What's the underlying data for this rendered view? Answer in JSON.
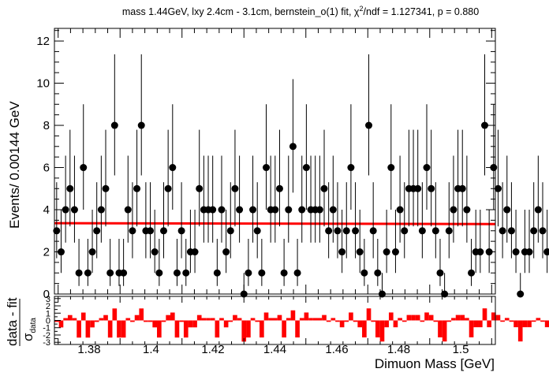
{
  "chart_data": [
    {
      "type": "scatter",
      "title_main": "mass 1.44GeV, lxy 2.4cm - 3.1cm, bernstein_o(1) fit, χ",
      "title_sup": "2",
      "title_rest": "/ndf = 1.127341, p = 0.880",
      "ylabel": "Events/ 0.00144 GeV",
      "xlim": [
        1.3688,
        1.5112
      ],
      "ylim": [
        0,
        12.6
      ],
      "xticks": [
        "1.38",
        "1.4",
        "1.42",
        "1.44",
        "1.46",
        "1.48",
        "1.5"
      ],
      "yticks": [
        "0",
        "2",
        "4",
        "6",
        "8",
        "10",
        "12"
      ],
      "bin_width": 0.00144,
      "x_start": 1.36952,
      "counts": [
        3,
        2,
        4,
        5,
        4,
        1,
        6,
        1,
        2,
        3,
        4,
        5,
        1,
        8,
        1,
        1,
        4,
        3,
        5,
        8,
        3,
        3,
        2,
        1,
        3,
        5,
        6,
        1,
        3,
        1,
        2,
        2,
        5,
        4,
        4,
        4,
        1,
        4,
        2,
        3,
        5,
        4,
        0,
        1,
        4,
        3,
        1,
        6,
        4,
        4,
        5,
        1,
        4,
        7,
        1,
        4,
        6,
        4,
        4,
        4,
        5,
        3,
        4,
        3,
        2,
        3,
        6,
        3,
        2,
        1,
        8,
        3,
        1,
        0,
        2,
        6,
        2,
        4,
        3,
        5,
        5,
        5,
        3,
        6,
        5,
        3,
        1,
        0,
        3,
        4,
        5,
        5,
        4,
        1,
        2,
        2,
        8,
        2,
        6,
        5,
        3,
        4,
        3,
        2,
        0,
        2,
        2,
        3,
        4,
        3,
        2
      ],
      "fit": {
        "name": "bernstein_o(1) fit",
        "y_start": 3.36,
        "y_end": 3.32,
        "color": "#ff0000"
      },
      "marker_color": "#000000"
    },
    {
      "type": "bar",
      "ylabel_num": "data - fit",
      "ylabel_den_main": "σ",
      "ylabel_den_sub": "data",
      "xlabel": "Dimuon Mass [GeV]",
      "ylim": [
        -3.3,
        3.3
      ],
      "yticks": [
        "-3",
        "-2",
        "-1",
        "0",
        "1",
        "2",
        "3"
      ],
      "bar_color": "#ff0000",
      "note": ""
    }
  ]
}
